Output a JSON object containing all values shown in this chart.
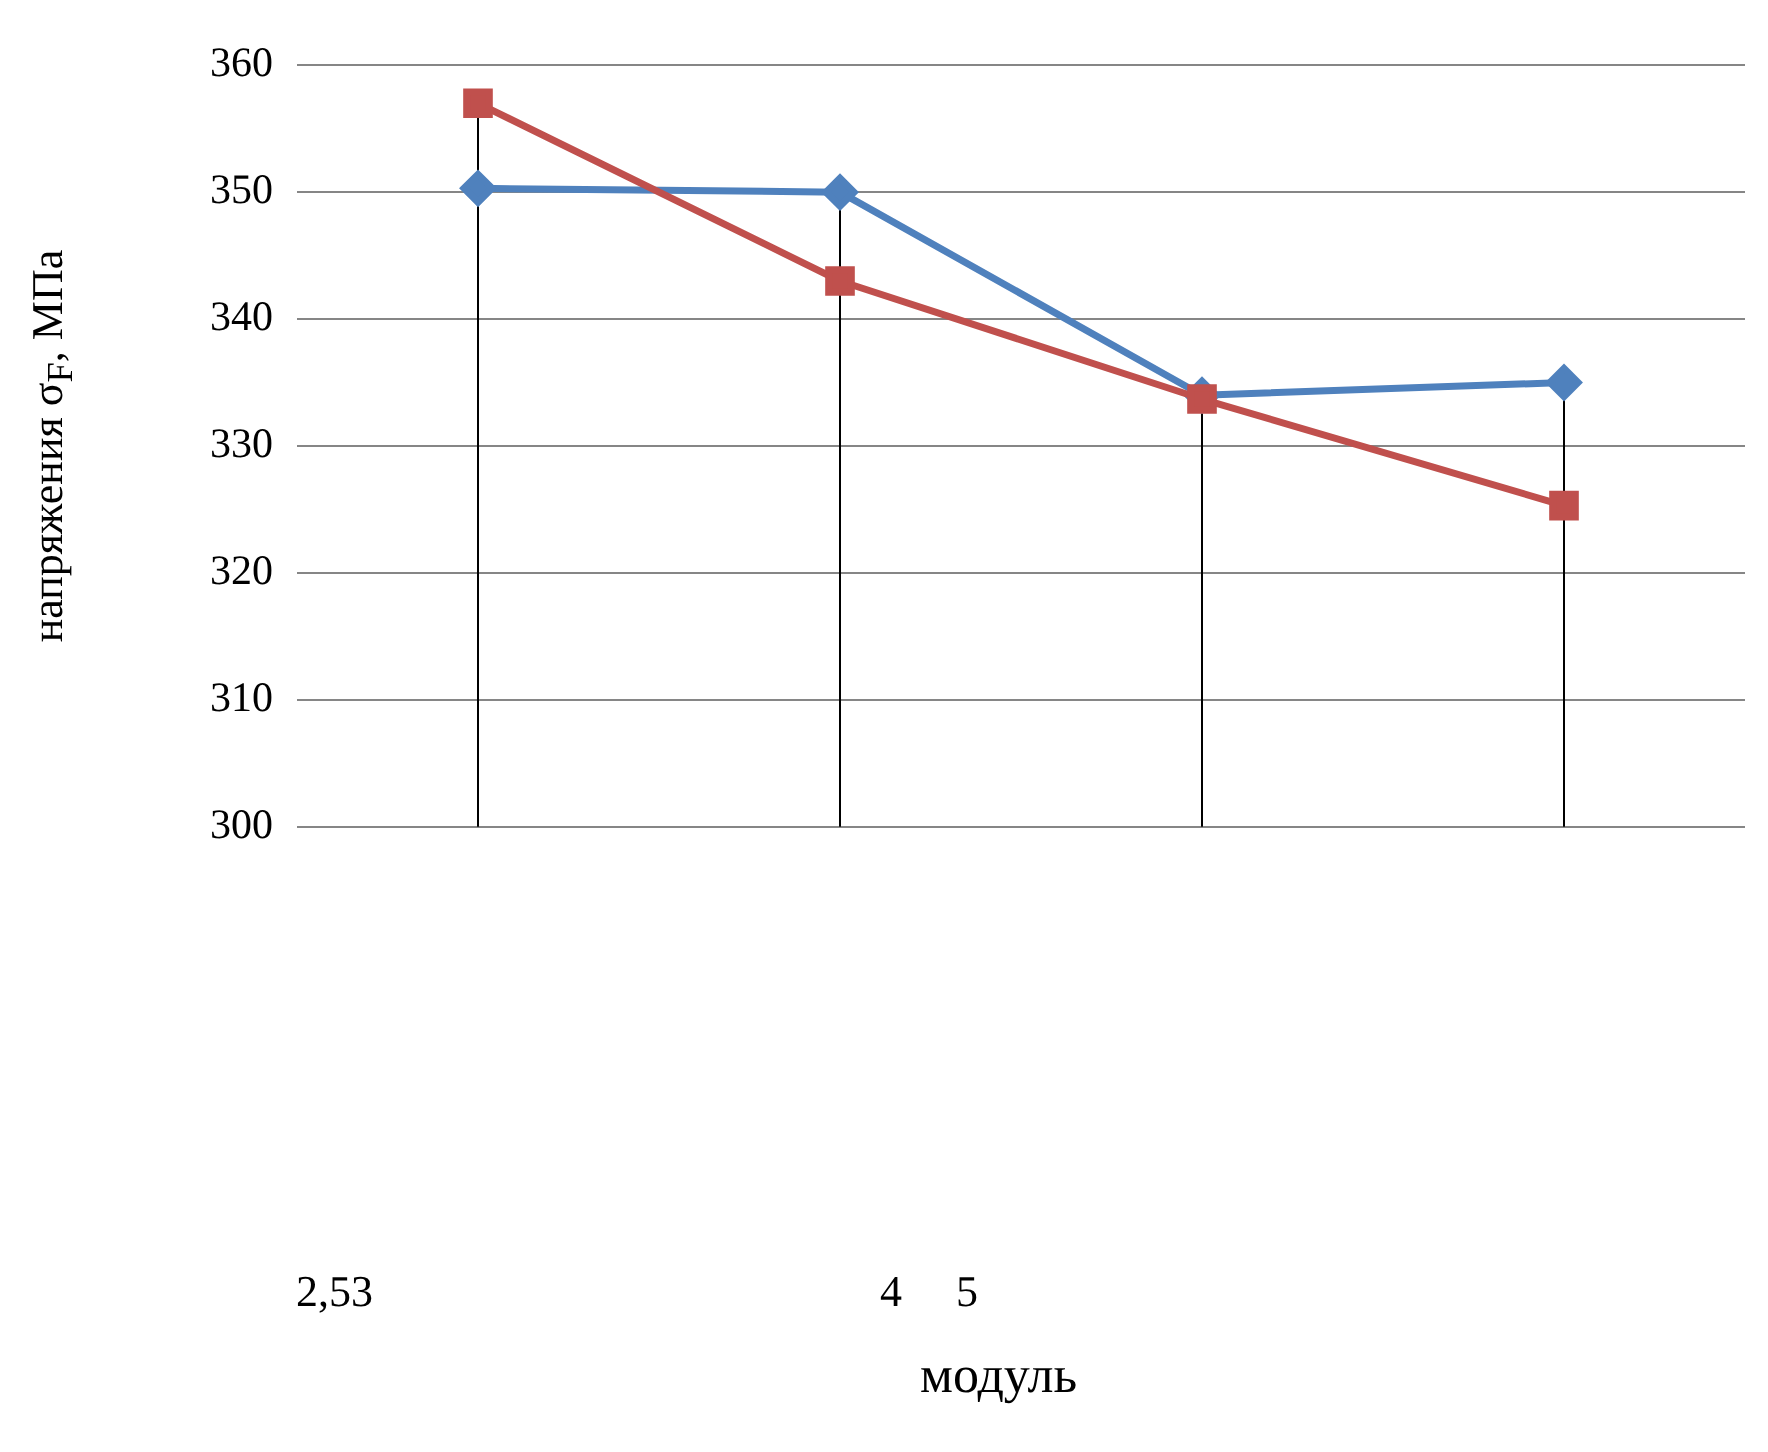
{
  "chart_data": {
    "type": "line",
    "ylabel": "напряжения σ$_{F}$, МПа",
    "categories": [
      null,
      null,
      null,
      null
    ],
    "series": [
      {
        "color": "#4f81bd",
        "marker": "diamond",
        "values": [
          350.3,
          350,
          334,
          335
        ]
      },
      {
        "color": "#c0504d",
        "marker": "square",
        "values": [
          357,
          343,
          333.7,
          325.3
        ]
      }
    ],
    "ylim": [
      300,
      360
    ],
    "yticks": [
      300,
      310,
      320,
      330,
      340,
      350,
      360
    ],
    "grid": "y",
    "legend": false,
    "annotations": [
      "2,53",
      "4",
      "5",
      "модуль"
    ]
  }
}
